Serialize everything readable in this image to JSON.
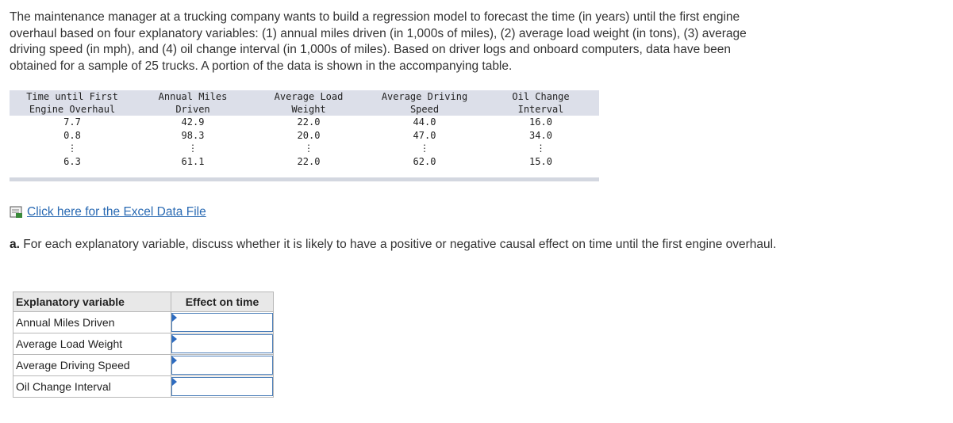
{
  "intro": {
    "lines": [
      "The maintenance manager at a trucking company wants to build a regression model to forecast the time (in years) until the first engine",
      "overhaul based on four explanatory variables: (1) annual miles driven (in 1,000s of miles), (2) average load weight (in tons), (3) average",
      "driving speed (in mph), and (4) oil change interval (in 1,000s of miles). Based on driver logs and onboard computers, data have been",
      "obtained for a sample of 25 trucks. A portion of the data is shown in the accompanying table."
    ]
  },
  "data_table": {
    "headers": [
      [
        "Time until First",
        "Engine Overhaul"
      ],
      [
        "Annual Miles",
        "Driven"
      ],
      [
        "Average Load",
        "Weight"
      ],
      [
        "Average Driving",
        "Speed"
      ],
      [
        "Oil Change",
        "Interval"
      ]
    ],
    "rows": [
      [
        "7.7",
        "42.9",
        "22.0",
        "44.0",
        "16.0"
      ],
      [
        "0.8",
        "98.3",
        "20.0",
        "47.0",
        "34.0"
      ],
      [
        "⋮",
        "⋮",
        "⋮",
        "⋮",
        "⋮"
      ],
      [
        "6.3",
        "61.1",
        "22.0",
        "62.0",
        "15.0"
      ]
    ]
  },
  "link": "Click here for the Excel Data File",
  "question": {
    "label": "a.",
    "text": "For each explanatory variable, discuss whether it is likely to have a positive or negative causal effect on time until the first engine overhaul."
  },
  "answer_table": {
    "headers": [
      "Explanatory variable",
      "Effect on time"
    ],
    "rows": [
      "Annual Miles Driven",
      "Average Load Weight",
      "Average Driving Speed",
      "Oil Change Interval"
    ]
  }
}
